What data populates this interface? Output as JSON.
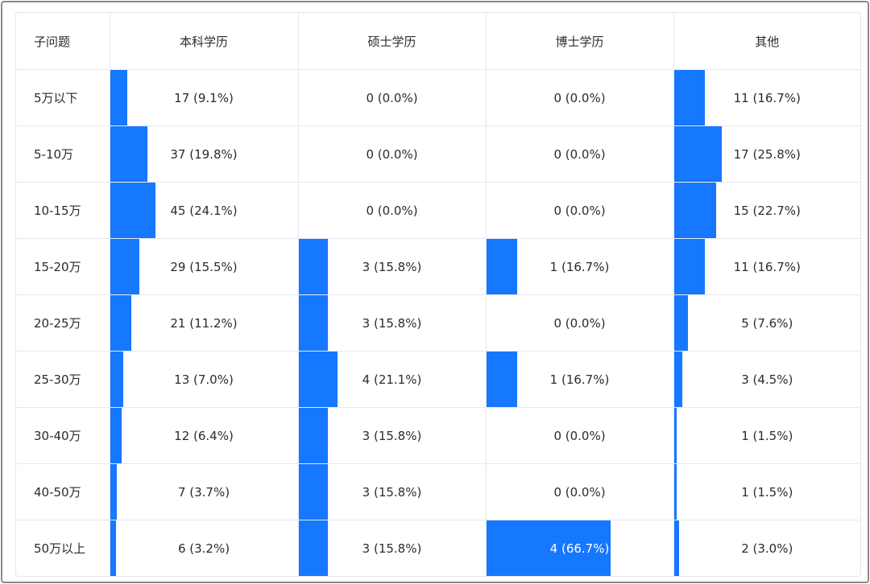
{
  "table": {
    "header_label": "子问题",
    "columns": [
      "本科学历",
      "硕士学历",
      "博士学历",
      "其他"
    ],
    "bar_color": "#1677ff",
    "rows": [
      {
        "label": "5万以下",
        "cells": [
          {
            "text": "17 (9.1%)",
            "percent": 9.1
          },
          {
            "text": "0 (0.0%)",
            "percent": 0.0
          },
          {
            "text": "0 (0.0%)",
            "percent": 0.0
          },
          {
            "text": "11 (16.7%)",
            "percent": 16.7
          }
        ]
      },
      {
        "label": "5-10万",
        "cells": [
          {
            "text": "37 (19.8%)",
            "percent": 19.8
          },
          {
            "text": "0 (0.0%)",
            "percent": 0.0
          },
          {
            "text": "0 (0.0%)",
            "percent": 0.0
          },
          {
            "text": "17 (25.8%)",
            "percent": 25.8
          }
        ]
      },
      {
        "label": "10-15万",
        "cells": [
          {
            "text": "45 (24.1%)",
            "percent": 24.1
          },
          {
            "text": "0 (0.0%)",
            "percent": 0.0
          },
          {
            "text": "0 (0.0%)",
            "percent": 0.0
          },
          {
            "text": "15 (22.7%)",
            "percent": 22.7
          }
        ]
      },
      {
        "label": "15-20万",
        "cells": [
          {
            "text": "29 (15.5%)",
            "percent": 15.5
          },
          {
            "text": "3 (15.8%)",
            "percent": 15.8
          },
          {
            "text": "1 (16.7%)",
            "percent": 16.7
          },
          {
            "text": "11 (16.7%)",
            "percent": 16.7
          }
        ]
      },
      {
        "label": "20-25万",
        "cells": [
          {
            "text": "21 (11.2%)",
            "percent": 11.2
          },
          {
            "text": "3 (15.8%)",
            "percent": 15.8
          },
          {
            "text": "0 (0.0%)",
            "percent": 0.0
          },
          {
            "text": "5 (7.6%)",
            "percent": 7.6
          }
        ]
      },
      {
        "label": "25-30万",
        "cells": [
          {
            "text": "13 (7.0%)",
            "percent": 7.0
          },
          {
            "text": "4 (21.1%)",
            "percent": 21.1
          },
          {
            "text": "1 (16.7%)",
            "percent": 16.7
          },
          {
            "text": "3 (4.5%)",
            "percent": 4.5
          }
        ]
      },
      {
        "label": "30-40万",
        "cells": [
          {
            "text": "12 (6.4%)",
            "percent": 6.4
          },
          {
            "text": "3 (15.8%)",
            "percent": 15.8
          },
          {
            "text": "0 (0.0%)",
            "percent": 0.0
          },
          {
            "text": "1 (1.5%)",
            "percent": 1.5
          }
        ]
      },
      {
        "label": "40-50万",
        "cells": [
          {
            "text": "7 (3.7%)",
            "percent": 3.7
          },
          {
            "text": "3 (15.8%)",
            "percent": 15.8
          },
          {
            "text": "0 (0.0%)",
            "percent": 0.0
          },
          {
            "text": "1 (1.5%)",
            "percent": 1.5
          }
        ]
      },
      {
        "label": "50万以上",
        "cells": [
          {
            "text": "6 (3.2%)",
            "percent": 3.2
          },
          {
            "text": "3 (15.8%)",
            "percent": 15.8
          },
          {
            "text": "4 (66.7%)",
            "percent": 66.7
          },
          {
            "text": "2 (3.0%)",
            "percent": 3.0
          }
        ]
      }
    ]
  }
}
